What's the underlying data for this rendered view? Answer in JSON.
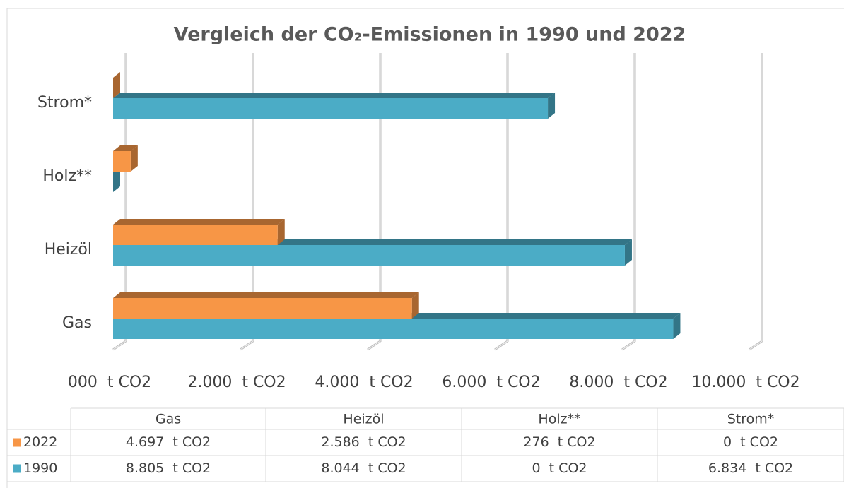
{
  "chart_data": {
    "type": "bar",
    "orientation": "horizontal",
    "title": "Vergleich der CO₂-Emissionen in 1990 und 2022",
    "categories": [
      "Gas",
      "Heizöl",
      "Holz**",
      "Strom*"
    ],
    "series": [
      {
        "name": "2022",
        "color": "#f79646",
        "values": [
          4697,
          2586,
          276,
          0
        ],
        "value_labels": [
          "4.697  t CO2",
          "2.586  t CO2",
          "276  t CO2",
          "0  t CO2"
        ]
      },
      {
        "name": "1990",
        "color": "#4bacc6",
        "values": [
          8805,
          8044,
          0,
          6834
        ],
        "value_labels": [
          "8.805  t CO2",
          "8.044  t CO2",
          "0  t CO2",
          "6.834  t CO2"
        ]
      }
    ],
    "xlim": [
      0,
      10000
    ],
    "xticks": [
      {
        "value": 0,
        "label": "000  t CO2"
      },
      {
        "value": 2000,
        "label": "2.000  t CO2"
      },
      {
        "value": 4000,
        "label": "4.000  t CO2"
      },
      {
        "value": 6000,
        "label": "6.000  t CO2"
      },
      {
        "value": 8000,
        "label": "8.000  t CO2"
      },
      {
        "value": 10000,
        "label": "10.000  t CO2"
      }
    ],
    "grid": true
  }
}
